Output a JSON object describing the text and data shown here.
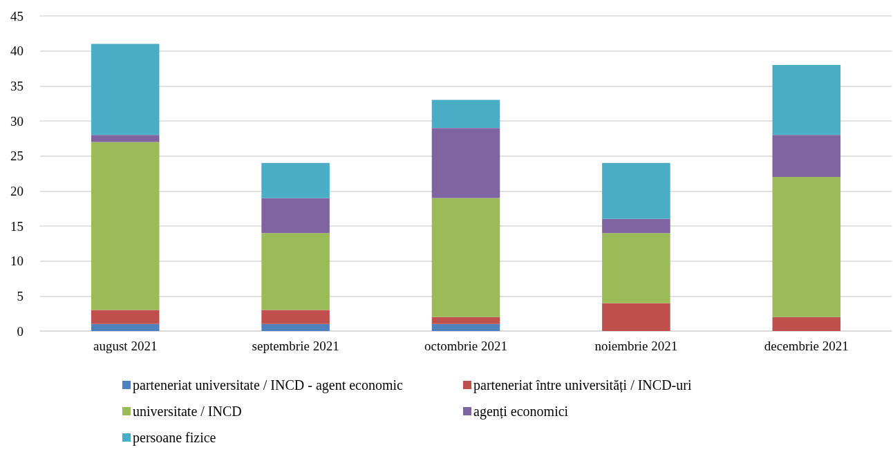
{
  "chart_data": {
    "type": "bar",
    "stacked": true,
    "categories": [
      "august 2021",
      "septembrie 2021",
      "octombrie 2021",
      "noiembrie 2021",
      "decembrie 2021"
    ],
    "series": [
      {
        "name": "parteneriat universitate / INCD - agent economic",
        "color": "#4f81bd",
        "values": [
          1,
          1,
          1,
          0,
          0
        ]
      },
      {
        "name": "parteneriat între universități / INCD-uri",
        "color": "#c0504d",
        "values": [
          2,
          2,
          1,
          4,
          2
        ]
      },
      {
        "name": "universitate / INCD",
        "color": "#9bbb59",
        "values": [
          24,
          11,
          17,
          10,
          20
        ]
      },
      {
        "name": "agenți economici",
        "color": "#8064a2",
        "values": [
          1,
          5,
          10,
          2,
          6
        ]
      },
      {
        "name": "persoane fizice",
        "color": "#4bacc6",
        "values": [
          13,
          5,
          4,
          8,
          10
        ]
      }
    ],
    "ylim": [
      0,
      45
    ],
    "yticks": [
      0,
      5,
      10,
      15,
      20,
      25,
      30,
      35,
      40,
      45
    ],
    "grid": "y",
    "legend": "bottom"
  }
}
